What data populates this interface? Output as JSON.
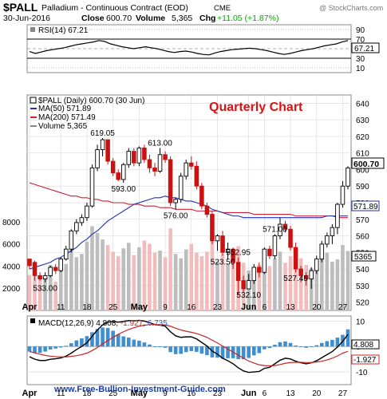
{
  "header": {
    "symbol": "$PALL",
    "name": "Palladium - Continuous Contract (EOD)",
    "exchange": "CME",
    "date": "30-Jun-2016",
    "close_label": "Close",
    "close_value": "600.70",
    "volume_label": "Volume",
    "volume_value": "5,365",
    "chg_label": "Chg",
    "chg_value": "+11.05 (+1.87%)",
    "chg_color": "#00aa00",
    "watermark": "@ StockCharts.com"
  },
  "rsi": {
    "label": "RSI(14) 67.21",
    "value_box": "67.21",
    "ticks": [
      90,
      70,
      50,
      30,
      10
    ],
    "ylim": [
      0,
      100
    ],
    "values": [
      44,
      40,
      43,
      46,
      48,
      50,
      52,
      55,
      58,
      60,
      62,
      64,
      67,
      65,
      60,
      57,
      54,
      52,
      50,
      52,
      54,
      52,
      50,
      47,
      44,
      42,
      44,
      45,
      43,
      40,
      38,
      37,
      41,
      44,
      46,
      48,
      49,
      50,
      51,
      50,
      48,
      46,
      43,
      40,
      38,
      40,
      43,
      46,
      48,
      50,
      53,
      56,
      58,
      60,
      64,
      67
    ]
  },
  "main": {
    "title": "$PALL (Daily) 600.70 (30 Jun)",
    "overlay_label": "Quarterly Chart",
    "overlay_color": "#dd1111",
    "legend": [
      {
        "text": "MA(50) 571.89",
        "color": "#2233aa"
      },
      {
        "text": "MA(200) 571.49",
        "color": "#cc2233"
      },
      {
        "text": "Volume 5,365",
        "color": "#888888"
      }
    ],
    "price_ticks": [
      640,
      630,
      620,
      610,
      600,
      590,
      580,
      570,
      560,
      550,
      540,
      530,
      520
    ],
    "volume_ticks": [
      "8000",
      "6000",
      "4000",
      "2000"
    ],
    "price_box": "600.70",
    "ma_box": "571.89",
    "vol_box": "5365",
    "annotations": [
      {
        "text": "619.05",
        "i": 14
      },
      {
        "text": "613.00",
        "i": 25
      },
      {
        "text": "593.00",
        "i": 18
      },
      {
        "text": "576.00",
        "i": 28
      },
      {
        "text": "571.00",
        "i": 47
      },
      {
        "text": "552.95",
        "i": 40
      },
      {
        "text": "533.00",
        "i": 3
      },
      {
        "text": "532.10",
        "i": 42
      },
      {
        "text": "523.50",
        "i": 37
      },
      {
        "text": "527.45",
        "i": 51
      }
    ]
  },
  "macd": {
    "label": "MACD(12,26,9)",
    "v1": "4.808",
    "v2": "-1.927",
    "v3": "6.735",
    "v2_color": "#cc2222",
    "v3_color": "#2266cc",
    "ticks": [
      10,
      0,
      -10
    ],
    "box_a": "4.808",
    "box_b": "-1.927"
  },
  "xaxis": {
    "labels": [
      {
        "text": "Apr",
        "i": 0,
        "bold": true
      },
      {
        "text": "11",
        "i": 6,
        "bold": false
      },
      {
        "text": "18",
        "i": 11,
        "bold": false
      },
      {
        "text": "25",
        "i": 16,
        "bold": false
      },
      {
        "text": "May",
        "i": 21,
        "bold": true
      },
      {
        "text": "9",
        "i": 26,
        "bold": false
      },
      {
        "text": "16",
        "i": 31,
        "bold": false
      },
      {
        "text": "23",
        "i": 36,
        "bold": false
      },
      {
        "text": "Jun",
        "i": 42,
        "bold": true
      },
      {
        "text": "6",
        "i": 45,
        "bold": false
      },
      {
        "text": "13",
        "i": 50,
        "bold": false
      },
      {
        "text": "20",
        "i": 55,
        "bold": false
      },
      {
        "text": "27",
        "i": 60,
        "bold": false
      }
    ]
  },
  "footer": {
    "site": "www.Free-Bullion-Investment-Guide.com",
    "site_color": "#1a3faa"
  },
  "chart_data": {
    "type": "candlestick",
    "title": "$PALL (Daily) 600.70 (30 Jun)",
    "ylim": [
      515,
      645
    ],
    "candles": [
      [
        546,
        542,
        544,
        540
      ],
      [
        544,
        536,
        545,
        533
      ],
      [
        536,
        534,
        538,
        533
      ],
      [
        534,
        536,
        538,
        532
      ],
      [
        536,
        541,
        542,
        535
      ],
      [
        541,
        539,
        543,
        537
      ],
      [
        539,
        546,
        547,
        538
      ],
      [
        546,
        552,
        554,
        545
      ],
      [
        552,
        563,
        564,
        550
      ],
      [
        563,
        568,
        570,
        561
      ],
      [
        568,
        571,
        573,
        566
      ],
      [
        571,
        578,
        580,
        569
      ],
      [
        578,
        601,
        603,
        577
      ],
      [
        601,
        612,
        615,
        599
      ],
      [
        612,
        618,
        619,
        608
      ],
      [
        618,
        605,
        617,
        603
      ],
      [
        605,
        598,
        607,
        596
      ],
      [
        598,
        594,
        600,
        593
      ],
      [
        594,
        603,
        604,
        592
      ],
      [
        603,
        611,
        613,
        601
      ],
      [
        611,
        604,
        613,
        602
      ],
      [
        604,
        613,
        614,
        602
      ],
      [
        613,
        606,
        615,
        604
      ],
      [
        606,
        601,
        609,
        598
      ],
      [
        601,
        599,
        604,
        596
      ],
      [
        599,
        609,
        613,
        598
      ],
      [
        609,
        606,
        611,
        604
      ],
      [
        606,
        580,
        608,
        578
      ],
      [
        580,
        582,
        583,
        576
      ],
      [
        582,
        596,
        598,
        580
      ],
      [
        596,
        604,
        606,
        594
      ],
      [
        604,
        602,
        608,
        600
      ],
      [
        602,
        590,
        605,
        588
      ],
      [
        590,
        578,
        592,
        576
      ],
      [
        578,
        573,
        580,
        571
      ],
      [
        573,
        557,
        575,
        555
      ],
      [
        557,
        560,
        561,
        551
      ],
      [
        560,
        550,
        563,
        548
      ],
      [
        550,
        552,
        556,
        546
      ],
      [
        552,
        544,
        553,
        540
      ],
      [
        544,
        533,
        547,
        524
      ],
      [
        533,
        528,
        536,
        526
      ],
      [
        528,
        533,
        537,
        528
      ],
      [
        533,
        541,
        543,
        531
      ],
      [
        541,
        538,
        544,
        535
      ],
      [
        538,
        552,
        553,
        537
      ],
      [
        552,
        548,
        554,
        546
      ],
      [
        548,
        560,
        561,
        546
      ],
      [
        560,
        567,
        571,
        558
      ],
      [
        567,
        564,
        569,
        562
      ],
      [
        564,
        553,
        566,
        551
      ],
      [
        553,
        540,
        556,
        538
      ],
      [
        540,
        536,
        542,
        532
      ],
      [
        536,
        534,
        538,
        530
      ],
      [
        534,
        539,
        541,
        528
      ],
      [
        539,
        546,
        548,
        537
      ],
      [
        546,
        555,
        557,
        544
      ],
      [
        555,
        560,
        562,
        553
      ],
      [
        560,
        565,
        567,
        555
      ],
      [
        565,
        579,
        580,
        561
      ],
      [
        579,
        590,
        593,
        577
      ],
      [
        590,
        601,
        602,
        588
      ]
    ],
    "ma50": [
      540,
      541,
      542,
      543,
      544,
      546,
      547,
      549,
      551,
      553,
      556,
      558,
      561,
      563,
      566,
      569,
      571,
      573,
      575,
      577,
      579,
      580,
      581,
      582,
      583,
      583,
      584,
      583,
      583,
      582,
      581,
      581,
      580,
      579,
      578,
      576,
      575,
      574,
      573,
      572,
      572,
      571,
      571,
      571,
      571,
      571,
      571,
      571,
      571,
      571,
      571,
      571,
      571,
      571,
      571,
      571,
      571,
      572,
      572,
      572,
      572,
      572
    ],
    "ma200": [
      592,
      591,
      590,
      589,
      588,
      587,
      586,
      585,
      584,
      584,
      583,
      583,
      582,
      582,
      581,
      581,
      580,
      580,
      580,
      579,
      579,
      579,
      578,
      578,
      578,
      577,
      577,
      577,
      576,
      576,
      576,
      576,
      575,
      575,
      575,
      575,
      575,
      574,
      574,
      574,
      574,
      574,
      574,
      573,
      573,
      573,
      573,
      573,
      573,
      573,
      573,
      572,
      572,
      572,
      572,
      572,
      572,
      572,
      572,
      571,
      571,
      571
    ],
    "volume": [
      3200,
      3600,
      2800,
      3000,
      4100,
      2600,
      3800,
      4200,
      5600,
      4800,
      5100,
      6200,
      7600,
      7000,
      6400,
      5900,
      5300,
      4900,
      5600,
      6100,
      5000,
      5700,
      6300,
      6000,
      5200,
      5400,
      4800,
      7400,
      5100,
      4700,
      5500,
      6000,
      5200,
      4900,
      5300,
      6800,
      4400,
      5100,
      4200,
      4600,
      5800,
      4300,
      3600,
      3900,
      4100,
      4600,
      4000,
      4700,
      5300,
      4300,
      4900,
      5600,
      4700,
      4100,
      3800,
      4200,
      4900,
      5200,
      4400,
      4600,
      5900,
      5365
    ],
    "macd": [
      -4,
      -5,
      -5.5,
      -5.5,
      -5,
      -4.8,
      -4.5,
      -3.8,
      -2.6,
      -1.2,
      0,
      1.5,
      4,
      6.5,
      8.5,
      9.6,
      9.8,
      9.6,
      9.8,
      10.2,
      10.1,
      10.3,
      10,
      9.4,
      8.6,
      8.4,
      8,
      5.8,
      4.2,
      3.6,
      3.8,
      3.8,
      3,
      1.6,
      0.2,
      -1.8,
      -3,
      -4.6,
      -5.6,
      -6.8,
      -8.4,
      -9.6,
      -10.2,
      -10,
      -9.8,
      -8.6,
      -8.2,
      -6.8,
      -5.4,
      -4.6,
      -4.9,
      -5.8,
      -6.4,
      -6.8,
      -6.4,
      -5.6,
      -4.4,
      -3.2,
      -2,
      -0.2,
      2,
      4.808
    ],
    "signal": [
      -2,
      -2.5,
      -3,
      -3.5,
      -3.8,
      -4,
      -4.1,
      -4.1,
      -3.9,
      -3.6,
      -3.2,
      -2.6,
      -1.6,
      -0.4,
      1,
      2.3,
      3.6,
      4.8,
      5.8,
      6.7,
      7.4,
      8,
      8.4,
      8.6,
      8.6,
      8.6,
      8.5,
      8,
      7.2,
      6.5,
      6,
      5.6,
      5.1,
      4.4,
      3.6,
      2.5,
      1.4,
      0.2,
      -1,
      -2.2,
      -3.4,
      -4.6,
      -5.7,
      -6.5,
      -7.2,
      -7.5,
      -7.6,
      -7.5,
      -7.1,
      -6.6,
      -6.3,
      -6.2,
      -6.2,
      -6.3,
      -6.3,
      -6.1,
      -5.8,
      -5.3,
      -4.6,
      -3.7,
      -2.6,
      -1.927
    ]
  }
}
